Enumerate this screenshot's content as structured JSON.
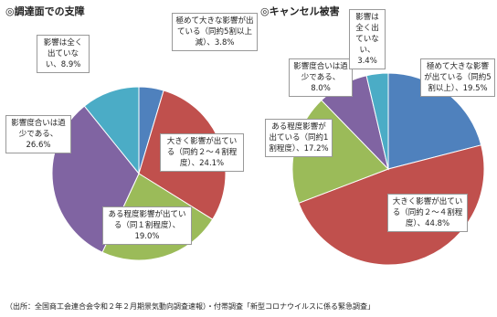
{
  "chart_data": [
    {
      "type": "pie",
      "title": "◎調達面での支障",
      "categories": [
        "極めて大きな影響が出ている（同約5割以上減）、",
        "大きく影響が出ている（同約２～４割程度）、",
        "ある程度影響が出ている（同１割程度）、",
        "影響度合いは過少である、",
        "影響は全く出ていない、"
      ],
      "values": [
        3.8,
        24.1,
        19.0,
        26.6,
        8.9
      ],
      "value_labels": [
        "3.8%",
        "24.1%",
        "19.0%",
        "26.6%",
        "8.9%"
      ],
      "colors": [
        "#4f81bd",
        "#c0504d",
        "#9bbb59",
        "#8064a2",
        "#4bacc6"
      ]
    },
    {
      "type": "pie",
      "title": "◎キャンセル被害",
      "categories": [
        "極めて大きな影響が出ている（同約5割以上）、",
        "大きく影響が出ている（同約２～４割程度）、",
        "ある程度影響が出ている（同約1割程度）、",
        "影響度合いは過少である、",
        "影響は全く出ていない、"
      ],
      "values": [
        19.5,
        44.8,
        17.2,
        8.0,
        3.4
      ],
      "value_labels": [
        "19.5%",
        "44.8%",
        "17.2%",
        "8.0%",
        "3.4%"
      ],
      "colors": [
        "#4f81bd",
        "#c0504d",
        "#9bbb59",
        "#8064a2",
        "#4bacc6"
      ]
    }
  ],
  "footnote": "（出所：全国商工会連合会令和２年２月期景気動向調査速報）・付帯調査「新型コロナウイルスに係る緊急調査」"
}
